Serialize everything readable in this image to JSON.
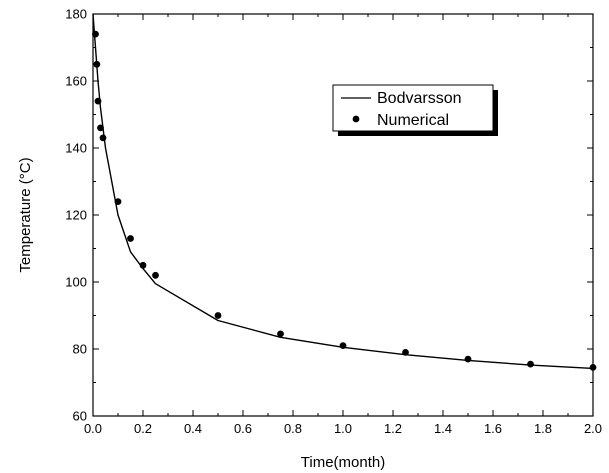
{
  "chart_data": {
    "type": "line",
    "title": "",
    "xlabel": "Time(month)",
    "ylabel": "Temperature (°C)",
    "xlim": [
      0.0,
      2.0
    ],
    "ylim": [
      60,
      180
    ],
    "x_ticks": [
      "0.0",
      "0.2",
      "0.4",
      "0.6",
      "0.8",
      "1.0",
      "1.2",
      "1.4",
      "1.6",
      "1.8",
      "2.0"
    ],
    "y_ticks": [
      "60",
      "80",
      "100",
      "120",
      "140",
      "160",
      "180"
    ],
    "grid": false,
    "legend_position": "top-right",
    "series": [
      {
        "name": "Bodvarsson",
        "style": "line",
        "color": "#000000",
        "x": [
          0.0,
          0.01,
          0.02,
          0.03,
          0.05,
          0.1,
          0.15,
          0.2,
          0.25,
          0.5,
          0.75,
          1.0,
          1.25,
          1.5,
          1.75,
          2.0
        ],
        "y": [
          180,
          170,
          160,
          152,
          140,
          120,
          109,
          104,
          99.5,
          88.5,
          83.5,
          80.5,
          78.3,
          76.6,
          75.2,
          74.2
        ]
      },
      {
        "name": "Numerical",
        "style": "scatter",
        "color": "#000000",
        "x": [
          0.01,
          0.015,
          0.02,
          0.03,
          0.04,
          0.1,
          0.15,
          0.2,
          0.25,
          0.5,
          0.75,
          1.0,
          1.25,
          1.5,
          1.75,
          2.0
        ],
        "y": [
          174,
          165,
          154,
          146,
          143,
          124,
          113,
          105,
          102,
          90,
          84.5,
          81,
          79,
          77,
          75.5,
          74.5
        ]
      }
    ]
  }
}
